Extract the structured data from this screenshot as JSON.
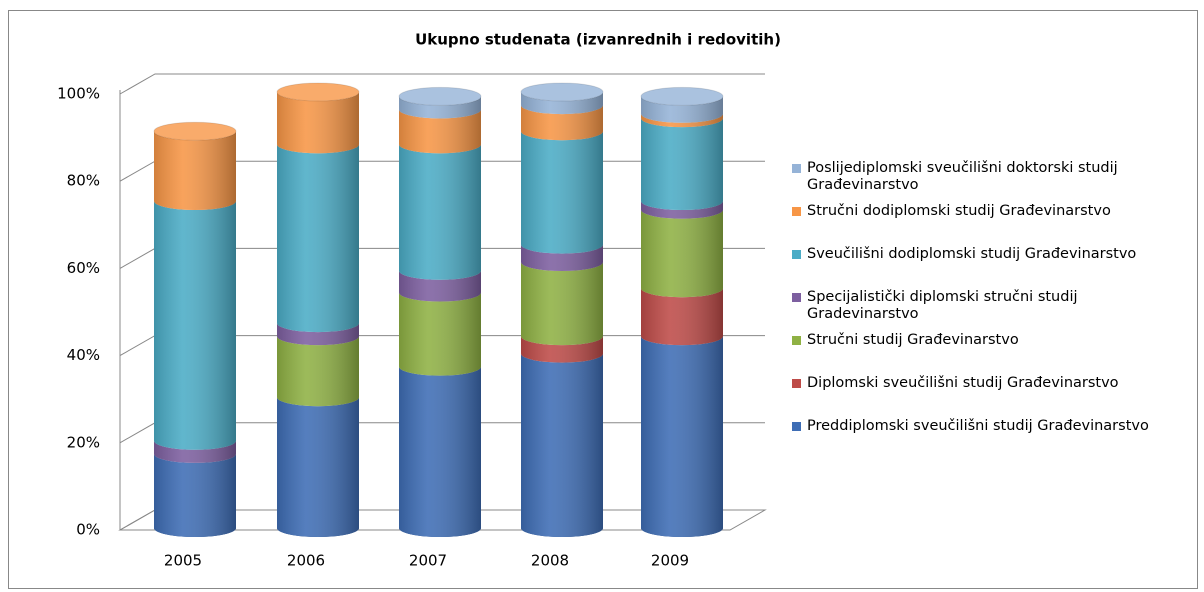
{
  "chart_data": {
    "type": "cylinder-stacked",
    "title": "Ukupno studenata (izvanrednih i redovitih)",
    "categories": [
      "2005",
      "2006",
      "2007",
      "2008",
      "2009"
    ],
    "series": [
      {
        "name": "Preddiplomski sveučilišni studij Građevinarstvo",
        "color": "#3e6db5",
        "values": [
          17,
          30,
          37,
          40,
          44
        ]
      },
      {
        "name": "Diplomski sveučilišni studij Građevinarstvo",
        "color": "#be4b48",
        "values": [
          0,
          0,
          0,
          4,
          11
        ]
      },
      {
        "name": "Stručni studij Građevinarstvo",
        "color": "#8fb144",
        "values": [
          0,
          14,
          17,
          17,
          18
        ]
      },
      {
        "name": "Specijalistički diplomski stručni studij Gradevinarstvo",
        "color": "#7d5fa0",
        "values": [
          3,
          3,
          5,
          4,
          2
        ]
      },
      {
        "name": "Sveučilišni dodiplomski studij Građevinarstvo",
        "color": "#4bacc6",
        "values": [
          55,
          41,
          29,
          26,
          19
        ]
      },
      {
        "name": "Stručni dodiplomski studij Građevinarstvo",
        "color": "#f79646",
        "values": [
          16,
          12,
          8,
          6,
          1
        ]
      },
      {
        "name": "Poslijediplomski sveučilišni doktorski studij Građevinarstvo",
        "color": "#95b3d7",
        "values": [
          0,
          0,
          3,
          3,
          4
        ]
      }
    ],
    "ylim": [
      0,
      100
    ],
    "yticks": [
      {
        "value": 0,
        "label": "0%"
      },
      {
        "value": 20,
        "label": "20%"
      },
      {
        "value": 40,
        "label": "40%"
      },
      {
        "value": 60,
        "label": "60%"
      },
      {
        "value": 80,
        "label": "80%"
      },
      {
        "value": 100,
        "label": "100%"
      }
    ],
    "grid": true,
    "legend": "right"
  }
}
